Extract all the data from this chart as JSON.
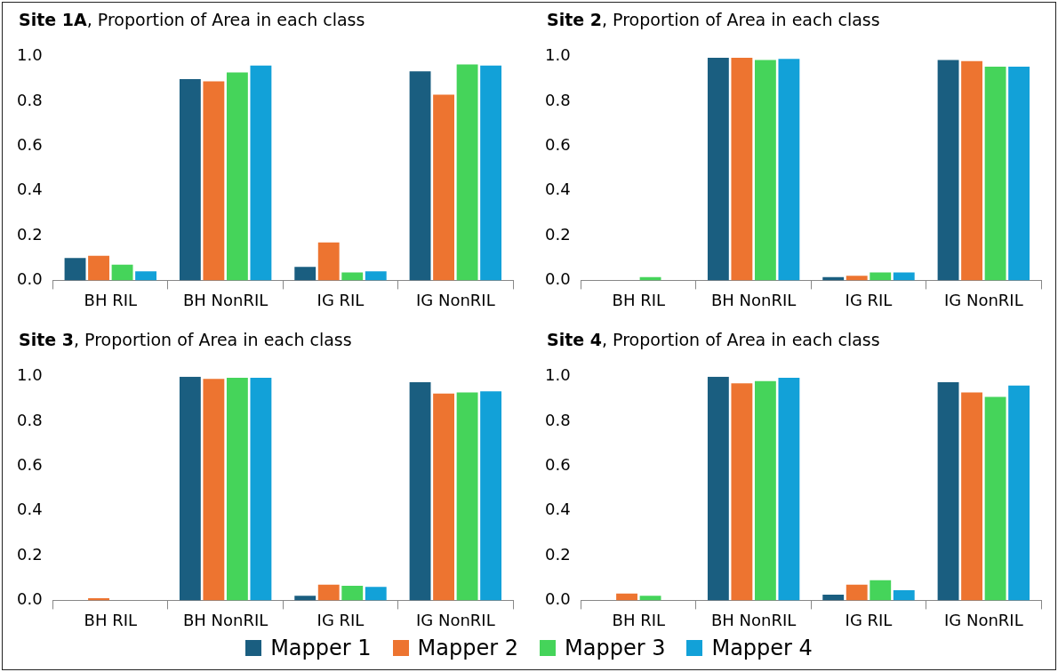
{
  "chart_data": [
    {
      "type": "bar",
      "title": "Site 1A, Proportion of Area in each class",
      "categories": [
        "BH RIL",
        "BH NonRIL",
        "IG RIL",
        "IG NonRIL"
      ],
      "ylim": [
        0,
        1
      ],
      "yticks": [
        {
          "value": 0,
          "label": "0.0"
        },
        {
          "value": 0.2,
          "label": "0.2"
        },
        {
          "value": 0.4,
          "label": "0.4"
        },
        {
          "value": 0.6,
          "label": "0.6"
        },
        {
          "value": 0.8,
          "label": "0.8"
        },
        {
          "value": 1,
          "label": "1.0"
        }
      ],
      "grid": false,
      "legend": "bottom",
      "series": [
        {
          "name": "Mapper 1",
          "color": "#1a5e80",
          "values": [
            0.1,
            0.9,
            0.06,
            0.935
          ]
        },
        {
          "name": "Mapper 2",
          "color": "#ed7430",
          "values": [
            0.11,
            0.89,
            0.17,
            0.83
          ]
        },
        {
          "name": "Mapper 3",
          "color": "#45d45a",
          "values": [
            0.07,
            0.93,
            0.035,
            0.965
          ]
        },
        {
          "name": "Mapper 4",
          "color": "#12a1d8",
          "values": [
            0.04,
            0.96,
            0.04,
            0.96
          ]
        }
      ]
    },
    {
      "type": "bar",
      "title": "Site 2, Proportion of Area in each class",
      "categories": [
        "BH RIL",
        "BH NonRIL",
        "IG RIL",
        "IG NonRIL"
      ],
      "ylim": [
        0,
        1
      ],
      "yticks": [
        {
          "value": 0,
          "label": "0.0"
        },
        {
          "value": 0.2,
          "label": "0.2"
        },
        {
          "value": 0.4,
          "label": "0.4"
        },
        {
          "value": 0.6,
          "label": "0.6"
        },
        {
          "value": 0.8,
          "label": "0.8"
        },
        {
          "value": 1,
          "label": "1.0"
        }
      ],
      "grid": false,
      "series": [
        {
          "color": "#1a5e80",
          "values": [
            0,
            0.995,
            0.015,
            0.985
          ]
        },
        {
          "color": "#ed7430",
          "values": [
            0,
            0.995,
            0.02,
            0.98
          ]
        },
        {
          "color": "#45d45a",
          "values": [
            0.015,
            0.985,
            0.035,
            0.955
          ]
        },
        {
          "color": "#12a1d8",
          "values": [
            0,
            0.99,
            0.035,
            0.955
          ]
        }
      ]
    },
    {
      "type": "bar",
      "title": "Site 3, Proportion of Area in each class",
      "categories": [
        "BH RIL",
        "BH NonRIL",
        "IG RIL",
        "IG NonRIL"
      ],
      "ylim": [
        0,
        1
      ],
      "yticks": [
        {
          "value": 0,
          "label": "0.0"
        },
        {
          "value": 0.2,
          "label": "0.2"
        },
        {
          "value": 0.4,
          "label": "0.4"
        },
        {
          "value": 0.6,
          "label": "0.6"
        },
        {
          "value": 0.8,
          "label": "0.8"
        },
        {
          "value": 1,
          "label": "1.0"
        }
      ],
      "grid": false,
      "series": [
        {
          "color": "#1a5e80",
          "values": [
            0,
            1,
            0.02,
            0.975
          ]
        },
        {
          "color": "#ed7430",
          "values": [
            0.01,
            0.99,
            0.07,
            0.925
          ]
        },
        {
          "color": "#45d45a",
          "values": [
            0,
            0.995,
            0.065,
            0.93
          ]
        },
        {
          "color": "#12a1d8",
          "values": [
            0,
            0.995,
            0.06,
            0.935
          ]
        }
      ]
    },
    {
      "type": "bar",
      "title": "Site 4, Proportion of Area in each class",
      "categories": [
        "BH RIL",
        "BH NonRIL",
        "IG RIL",
        "IG NonRIL"
      ],
      "ylim": [
        0,
        1
      ],
      "yticks": [
        {
          "value": 0,
          "label": "0.0"
        },
        {
          "value": 0.2,
          "label": "0.2"
        },
        {
          "value": 0.4,
          "label": "0.4"
        },
        {
          "value": 0.6,
          "label": "0.6"
        },
        {
          "value": 0.8,
          "label": "0.8"
        },
        {
          "value": 1,
          "label": "1.0"
        }
      ],
      "grid": false,
      "series": [
        {
          "color": "#1a5e80",
          "values": [
            0,
            1,
            0.025,
            0.975
          ]
        },
        {
          "color": "#ed7430",
          "values": [
            0.03,
            0.97,
            0.07,
            0.93
          ]
        },
        {
          "color": "#45d45a",
          "values": [
            0.02,
            0.98,
            0.09,
            0.91
          ]
        },
        {
          "color": "#12a1d8",
          "values": [
            0,
            0.995,
            0.045,
            0.96
          ]
        }
      ]
    }
  ]
}
